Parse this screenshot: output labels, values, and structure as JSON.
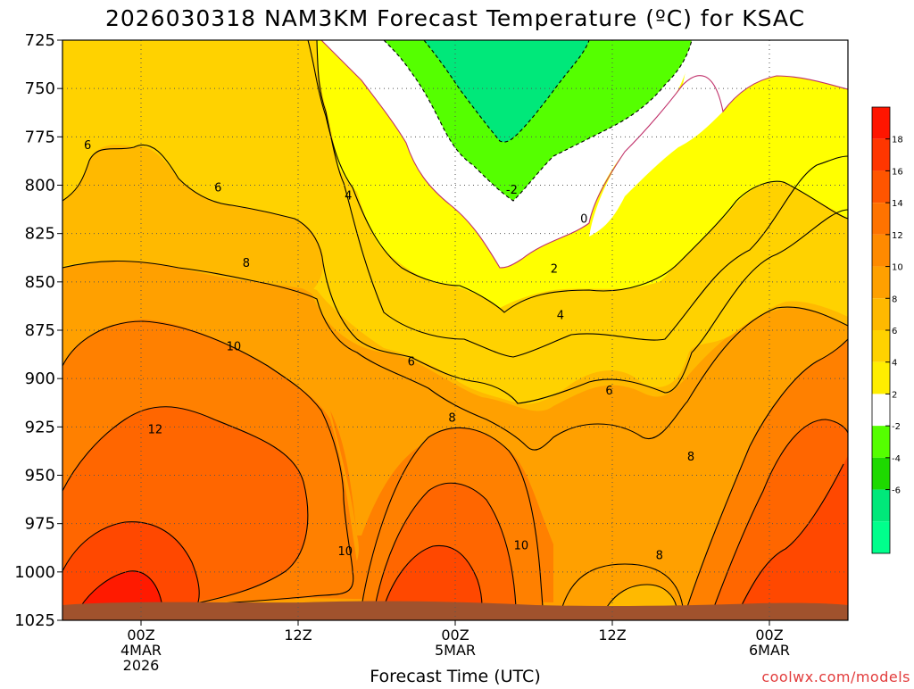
{
  "chart_data": {
    "type": "contour",
    "title": "2026030318 NAM3KM Forecast Temperature (ºC) for KSAC",
    "xlabel": "Forecast Time (UTC)",
    "ylabel": "",
    "y_axis": {
      "ticks": [
        725,
        750,
        775,
        800,
        825,
        850,
        875,
        900,
        925,
        950,
        975,
        1000,
        1025
      ],
      "tick_labels": [
        "725",
        "750",
        "775",
        "800",
        "825",
        "850",
        "875",
        "900",
        "925",
        "950",
        "975",
        "1000",
        "1025"
      ],
      "range": [
        725,
        1025
      ]
    },
    "x_axis": {
      "range_hours": [
        -5,
        45
      ],
      "ticks": [
        {
          "hour": 0,
          "lines": [
            "00Z",
            "4MAR",
            "2026"
          ]
        },
        {
          "hour": 10,
          "lines": [
            "12Z"
          ]
        },
        {
          "hour": 20,
          "lines": [
            "00Z",
            "5MAR"
          ]
        },
        {
          "hour": 30,
          "lines": [
            "12Z"
          ]
        },
        {
          "hour": 40,
          "lines": [
            "00Z",
            "6MAR"
          ]
        }
      ]
    },
    "contour_levels": [
      -2,
      0,
      2,
      4,
      6,
      8,
      10,
      12
    ],
    "contour_labels": [
      {
        "text": "6",
        "hour": -3.4,
        "p": 779
      },
      {
        "text": "6",
        "hour": 4.9,
        "p": 801
      },
      {
        "text": "4",
        "hour": 13.2,
        "p": 805
      },
      {
        "text": "8",
        "hour": 6.7,
        "p": 840
      },
      {
        "text": "10",
        "hour": 5.9,
        "p": 883
      },
      {
        "text": "12",
        "hour": 0.9,
        "p": 926
      },
      {
        "text": "-2",
        "hour": 23.6,
        "p": 802
      },
      {
        "text": "0",
        "hour": 28.2,
        "p": 817
      },
      {
        "text": "2",
        "hour": 26.3,
        "p": 843
      },
      {
        "text": "4",
        "hour": 26.7,
        "p": 867
      },
      {
        "text": "6",
        "hour": 17.2,
        "p": 891
      },
      {
        "text": "6",
        "hour": 29.8,
        "p": 906
      },
      {
        "text": "8",
        "hour": 19.8,
        "p": 920
      },
      {
        "text": "8",
        "hour": 35.0,
        "p": 940
      },
      {
        "text": "10",
        "hour": 13.0,
        "p": 989
      },
      {
        "text": "10",
        "hour": 24.2,
        "p": 986
      },
      {
        "text": "8",
        "hour": 33.0,
        "p": 991
      }
    ],
    "legend": {
      "position": "right",
      "labels": [
        "18",
        "16",
        "14",
        "12",
        "10",
        "8",
        "6",
        "4",
        "2",
        "-2",
        "-4",
        "-6"
      ],
      "colors": [
        "#ff1500",
        "#ff3600",
        "#ff5500",
        "#ff7300",
        "#ff8a00",
        "#ffa000",
        "#ffb900",
        "#ffd200",
        "#ffee00",
        "#ffffff",
        "#55ff00",
        "#1ed900",
        "#00e87a",
        "#00ff8c"
      ]
    },
    "colors": {
      "lt_neg2": "#00e87a",
      "neg2_0": "#55ff00",
      "0_2": "#ffffff",
      "2_4": "#ffff00",
      "4_6": "#ffd200",
      "6_8": "#ffb900",
      "8_10": "#ffa000",
      "10_12": "#ff8000",
      "12_14": "#ff6600",
      "14_16": "#ff4800",
      "gt_16": "#ff1a00",
      "ground": "#a0522d",
      "zero_line": "#c0306a"
    }
  },
  "credit": "coolwx.com/models"
}
